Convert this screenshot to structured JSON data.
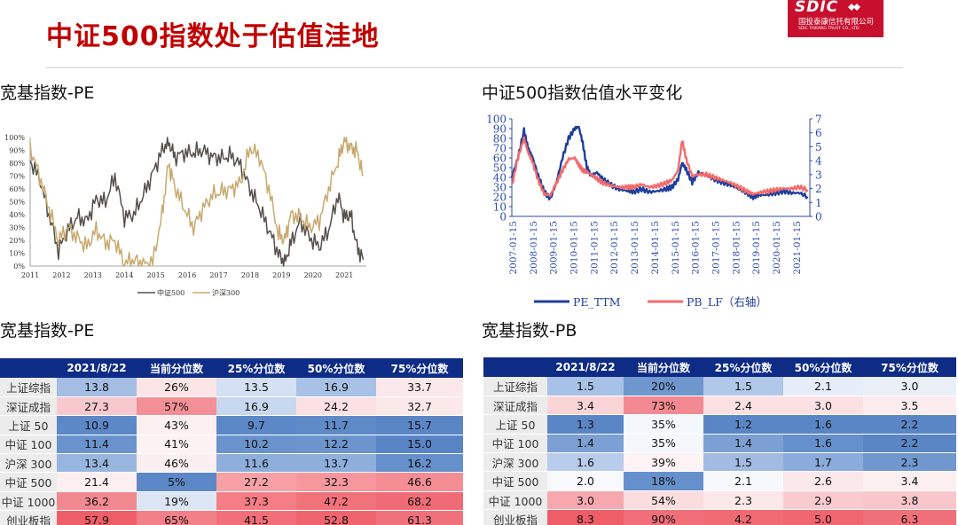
{
  "header": {
    "title": "中证500指数处于估值洼地",
    "logo_brand": "SDIC",
    "logo_cn": "国投泰康信托有限公司",
    "logo_en": "SDIC TAIKANG TRUST CO., LTD.",
    "accent_color": "#c00000"
  },
  "sections": {
    "top_left_title": "宽基指数-PE",
    "top_right_title": "中证500指数估值水平变化",
    "bottom_left_title": "宽基指数-PE",
    "bottom_right_title": "宽基指数-PB"
  },
  "chart_data": [
    {
      "type": "line",
      "title": "",
      "x_ticks": [
        "2011",
        "2012",
        "2013",
        "2014",
        "2015",
        "2016",
        "2017",
        "2018",
        "2019",
        "2020",
        "2021"
      ],
      "y_ticks": [
        "0%",
        "10%",
        "20%",
        "30%",
        "40%",
        "50%",
        "60%",
        "70%",
        "80%",
        "90%",
        "100%"
      ],
      "ylim": [
        0,
        100
      ],
      "grid": false,
      "legend_position": "bottom",
      "series": [
        {
          "name": "中证500",
          "color": "#55504b",
          "x": [
            2011.0,
            2011.3,
            2011.6,
            2011.9,
            2012.2,
            2012.5,
            2012.8,
            2013.1,
            2013.4,
            2013.7,
            2014.0,
            2014.3,
            2014.6,
            2014.9,
            2015.2,
            2015.4,
            2015.6,
            2015.9,
            2016.2,
            2016.5,
            2016.8,
            2017.1,
            2017.4,
            2017.7,
            2018.0,
            2018.3,
            2018.6,
            2018.9,
            2019.1,
            2019.3,
            2019.6,
            2019.9,
            2020.2,
            2020.5,
            2020.8,
            2021.0,
            2021.2,
            2021.4,
            2021.6
          ],
          "values": [
            82,
            68,
            40,
            12,
            28,
            38,
            35,
            52,
            50,
            70,
            38,
            40,
            55,
            72,
            90,
            97,
            85,
            88,
            88,
            90,
            85,
            84,
            86,
            78,
            60,
            45,
            28,
            10,
            2,
            18,
            35,
            22,
            15,
            28,
            55,
            38,
            40,
            15,
            5
          ]
        },
        {
          "name": "沪深300",
          "color": "#c8a96e",
          "x": [
            2011.0,
            2011.3,
            2011.6,
            2011.9,
            2012.2,
            2012.5,
            2012.8,
            2013.1,
            2013.4,
            2013.7,
            2014.0,
            2014.3,
            2014.6,
            2014.9,
            2015.2,
            2015.4,
            2015.6,
            2015.9,
            2016.2,
            2016.5,
            2016.8,
            2017.1,
            2017.4,
            2017.7,
            2018.0,
            2018.3,
            2018.6,
            2018.9,
            2019.1,
            2019.3,
            2019.6,
            2019.9,
            2020.2,
            2020.5,
            2020.8,
            2021.0,
            2021.2,
            2021.4,
            2021.6
          ],
          "values": [
            92,
            70,
            45,
            20,
            30,
            22,
            15,
            28,
            18,
            20,
            2,
            5,
            1,
            3,
            40,
            80,
            62,
            45,
            30,
            45,
            55,
            58,
            60,
            65,
            92,
            85,
            60,
            25,
            20,
            40,
            38,
            30,
            35,
            60,
            82,
            98,
            92,
            90,
            70
          ]
        }
      ]
    },
    {
      "type": "line",
      "title": "",
      "x_ticks": [
        "2007-01-15",
        "2008-01-15",
        "2009-01-15",
        "2010-01-15",
        "2011-01-15",
        "2012-01-15",
        "2013-01-15",
        "2014-01-15",
        "2015-01-15",
        "2016-01-15",
        "2017-01-15",
        "2018-01-15",
        "2019-01-15",
        "2020-01-15",
        "2021-01-15"
      ],
      "y_left_ticks": [
        "0",
        "10",
        "20",
        "30",
        "40",
        "50",
        "60",
        "70",
        "80",
        "90",
        "100"
      ],
      "y_right_ticks": [
        "0",
        "1",
        "2",
        "3",
        "4",
        "5",
        "6",
        "7"
      ],
      "ylim_left": [
        0,
        100
      ],
      "ylim_right": [
        0,
        7
      ],
      "grid": false,
      "legend_position": "bottom",
      "series": [
        {
          "name": "PE_TTM",
          "color": "#1f3f9a",
          "axis": "left",
          "x": [
            2007.0,
            2007.3,
            2007.6,
            2007.8,
            2008.0,
            2008.3,
            2008.6,
            2008.9,
            2009.2,
            2009.5,
            2009.8,
            2010.1,
            2010.3,
            2010.5,
            2010.7,
            2010.9,
            2011.2,
            2011.5,
            2011.9,
            2012.3,
            2012.7,
            2013.0,
            2013.4,
            2013.8,
            2014.2,
            2014.6,
            2014.9,
            2015.2,
            2015.4,
            2015.6,
            2015.9,
            2016.2,
            2016.6,
            2017.0,
            2017.4,
            2017.8,
            2018.2,
            2018.6,
            2018.9,
            2019.2,
            2019.6,
            2020.0,
            2020.4,
            2020.8,
            2021.2,
            2021.6
          ],
          "values": [
            40,
            60,
            88,
            70,
            62,
            42,
            25,
            18,
            35,
            60,
            80,
            90,
            92,
            75,
            50,
            42,
            45,
            38,
            32,
            28,
            26,
            25,
            28,
            25,
            26,
            28,
            30,
            38,
            55,
            48,
            35,
            45,
            42,
            38,
            35,
            32,
            28,
            24,
            20,
            22,
            22,
            24,
            26,
            24,
            24,
            20
          ]
        },
        {
          "name": "PB_LF（右轴）",
          "color": "#f26b6b",
          "axis": "right",
          "x": [
            2007.0,
            2007.3,
            2007.6,
            2007.8,
            2008.0,
            2008.3,
            2008.6,
            2008.9,
            2009.2,
            2009.5,
            2009.8,
            2010.1,
            2010.3,
            2010.5,
            2010.7,
            2010.9,
            2011.2,
            2011.5,
            2011.9,
            2012.3,
            2012.7,
            2013.0,
            2013.4,
            2013.8,
            2014.2,
            2014.6,
            2014.9,
            2015.2,
            2015.4,
            2015.6,
            2015.9,
            2016.2,
            2016.6,
            2017.0,
            2017.4,
            2017.8,
            2018.2,
            2018.6,
            2018.9,
            2019.2,
            2019.6,
            2020.0,
            2020.4,
            2020.8,
            2021.2,
            2021.6
          ],
          "values": [
            2.2,
            4.2,
            5.6,
            4.6,
            4.0,
            2.6,
            1.6,
            1.5,
            2.4,
            3.3,
            4.1,
            4.2,
            3.7,
            3.3,
            3.2,
            3.0,
            2.7,
            2.4,
            2.2,
            2.1,
            2.1,
            2.1,
            2.3,
            2.1,
            2.2,
            2.4,
            2.6,
            3.3,
            5.5,
            4.1,
            2.9,
            3.0,
            3.0,
            2.8,
            2.6,
            2.4,
            2.1,
            1.8,
            1.6,
            1.7,
            1.8,
            1.9,
            2.0,
            2.0,
            2.1,
            1.9
          ]
        }
      ]
    }
  ],
  "pe_table": {
    "headers": [
      "",
      "2021/8/22",
      "当前分位数",
      "25%分位数",
      "50%分位数",
      "75%分位数"
    ],
    "rows": [
      {
        "cells": [
          "上证综指",
          "13.8",
          "26%",
          "13.5",
          "16.9",
          "33.7"
        ],
        "colors": [
          "",
          "#a4bde3",
          "#fbe5e7",
          "#d4e0f3",
          "#a8c1e6",
          "#fbe8ea"
        ]
      },
      {
        "cells": [
          "深证成指",
          "27.3",
          "57%",
          "16.9",
          "24.2",
          "32.7"
        ],
        "colors": [
          "",
          "#f7c9ce",
          "#f38f96",
          "#c8d8ef",
          "#fbe1e3",
          "#fbe9ea"
        ]
      },
      {
        "cells": [
          "上证 50",
          "10.9",
          "43%",
          "9.7",
          "11.7",
          "15.7"
        ],
        "colors": [
          "",
          "#5d88c8",
          "#fcf0f1",
          "#5d88c8",
          "#5f8ac8",
          "#5b86c6"
        ]
      },
      {
        "cells": [
          "中证 100",
          "11.4",
          "41%",
          "10.2",
          "12.2",
          "15.0"
        ],
        "colors": [
          "",
          "#6a93cd",
          "#fcf2f3",
          "#6a93cd",
          "#6c94cd",
          "#5985c6"
        ]
      },
      {
        "cells": [
          "沪深 300",
          "13.4",
          "46%",
          "11.6",
          "13.7",
          "16.2"
        ],
        "colors": [
          "",
          "#98b5e0",
          "#fbeef0",
          "#8eaedc",
          "#8eaedc",
          "#6690cb"
        ]
      },
      {
        "cells": [
          "中证 500",
          "21.4",
          "5%",
          "27.2",
          "32.3",
          "46.6"
        ],
        "colors": [
          "",
          "#fdeff0",
          "#5d88c8",
          "#f7a1a7",
          "#f6979e",
          "#f58d95"
        ]
      },
      {
        "cells": [
          "中证 1000",
          "36.2",
          "19%",
          "37.3",
          "47.2",
          "68.2"
        ],
        "colors": [
          "",
          "#f28991",
          "#dbe5f4",
          "#f47d86",
          "#f2727b",
          "#ef6b75"
        ]
      },
      {
        "cells": [
          "创业板指",
          "57.9",
          "65%",
          "41.5",
          "52.8",
          "61.3"
        ],
        "colors": [
          "",
          "#ee5e69",
          "#f28088",
          "#f26f79",
          "#f0646f",
          "#f0717b"
        ]
      }
    ]
  },
  "pb_table": {
    "headers": [
      "",
      "2021/8/22",
      "当前分位数",
      "25%分位数",
      "50%分位数",
      "75%分位数"
    ],
    "rows": [
      {
        "cells": [
          "上证综指",
          "1.5",
          "20%",
          "1.5",
          "2.1",
          "3.0"
        ],
        "colors": [
          "",
          "#a8c1e6",
          "#6f97ce",
          "#b2c8e9",
          "#e6edf8",
          "#eaeff8"
        ]
      },
      {
        "cells": [
          "深证成指",
          "3.4",
          "73%",
          "2.4",
          "3.0",
          "3.5"
        ],
        "colors": [
          "",
          "#fad5d8",
          "#f38a92",
          "#fbe1e3",
          "#fbe1e3",
          "#fcecee"
        ]
      },
      {
        "cells": [
          "上证 50",
          "1.3",
          "35%",
          "1.2",
          "1.6",
          "2.2"
        ],
        "colors": [
          "",
          "#5b86c6",
          "#f4f7fc",
          "#5b86c6",
          "#5b86c6",
          "#5b86c6"
        ]
      },
      {
        "cells": [
          "中证 100",
          "1.4",
          "35%",
          "1.4",
          "1.6",
          "2.2"
        ],
        "colors": [
          "",
          "#7ca0d4",
          "#f4f7fc",
          "#7ca0d4",
          "#6690cb",
          "#5b86c6"
        ]
      },
      {
        "cells": [
          "沪深 300",
          "1.6",
          "39%",
          "1.5",
          "1.7",
          "2.3"
        ],
        "colors": [
          "",
          "#b8cceb",
          "#fdf3f4",
          "#a1bbe3",
          "#8aabdb",
          "#7098cf"
        ]
      },
      {
        "cells": [
          "中证 500",
          "2.0",
          "18%",
          "2.1",
          "2.6",
          "3.4"
        ],
        "colors": [
          "",
          "#f7f9fd",
          "#6690cb",
          "#f6f8fc",
          "#fbe8ea",
          "#fbeff0"
        ]
      },
      {
        "cells": [
          "中证 1000",
          "3.0",
          "54%",
          "2.3",
          "2.9",
          "3.8"
        ],
        "colors": [
          "",
          "#f6a8ae",
          "#fbdcdf",
          "#fce7e9",
          "#f9cbd0",
          "#f9c6cb"
        ]
      },
      {
        "cells": [
          "创业板指",
          "8.3",
          "90%",
          "4.2",
          "5.0",
          "6.3"
        ],
        "colors": [
          "",
          "#ee5e69",
          "#ef6e78",
          "#f06a74",
          "#ef6570",
          "#f07079"
        ]
      }
    ]
  }
}
